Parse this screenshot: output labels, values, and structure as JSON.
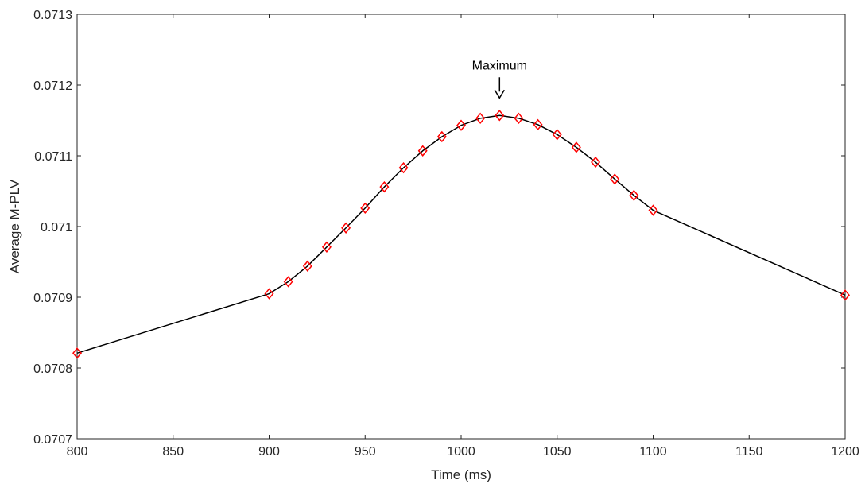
{
  "chart_data": {
    "type": "line",
    "title": "",
    "xlabel": "Time (ms)",
    "ylabel": "Average M-PLV",
    "xlim": [
      800,
      1200
    ],
    "ylim": [
      0.0707,
      0.0713
    ],
    "grid": false,
    "box": true,
    "x_ticks": [
      800,
      850,
      900,
      950,
      1000,
      1050,
      1100,
      1150,
      1200
    ],
    "x_tick_labels": [
      "800",
      "850",
      "900",
      "950",
      "1000",
      "1050",
      "1100",
      "1150",
      "1200"
    ],
    "y_ticks": [
      0.0707,
      0.0708,
      0.0709,
      0.071,
      0.0711,
      0.0712,
      0.0713
    ],
    "y_tick_labels": [
      "0.0707",
      "0.0708",
      "0.0709",
      "0.071",
      "0.0711",
      "0.0712",
      "0.0713"
    ],
    "series": [
      {
        "line_color": "#000000",
        "marker": "diamond",
        "marker_color": "#ff0000",
        "x": [
          800,
          900,
          910,
          920,
          930,
          940,
          950,
          960,
          970,
          980,
          990,
          1000,
          1010,
          1020,
          1030,
          1040,
          1050,
          1060,
          1070,
          1080,
          1090,
          1100,
          1200
        ],
        "y": [
          0.070821,
          0.070905,
          0.070922,
          0.070944,
          0.070971,
          0.070998,
          0.071026,
          0.071056,
          0.071083,
          0.071107,
          0.071127,
          0.071143,
          0.071153,
          0.071157,
          0.071153,
          0.071144,
          0.07113,
          0.071112,
          0.071091,
          0.071067,
          0.071044,
          0.071023,
          0.070903
        ]
      }
    ],
    "annotations": [
      {
        "text": "Maximum",
        "x": 1020,
        "y": 0.071157,
        "type": "arrow-down"
      }
    ]
  }
}
